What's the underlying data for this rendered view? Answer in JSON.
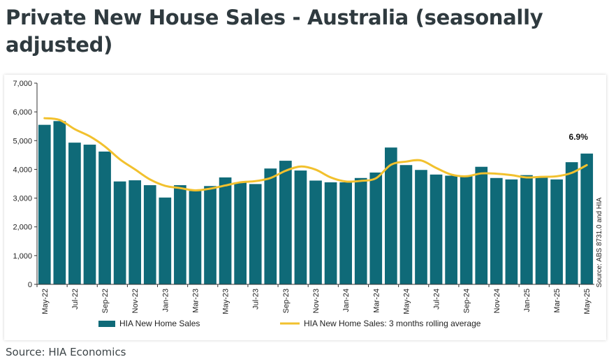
{
  "page_title": "Private New House Sales - Australia (seasonally adjusted)",
  "footer_source": "Source: HIA Economics",
  "chart_data": {
    "type": "bar",
    "categories": [
      "May-22",
      "Jun-22",
      "Jul-22",
      "Aug-22",
      "Sep-22",
      "Oct-22",
      "Nov-22",
      "Dec-22",
      "Jan-23",
      "Feb-23",
      "Mar-23",
      "Apr-23",
      "May-23",
      "Jun-23",
      "Jul-23",
      "Aug-23",
      "Sep-23",
      "Oct-23",
      "Nov-23",
      "Dec-23",
      "Jan-24",
      "Feb-24",
      "Mar-24",
      "Apr-24",
      "May-24",
      "Jun-24",
      "Jul-24",
      "Aug-24",
      "Sep-24",
      "Oct-24",
      "Nov-24",
      "Dec-24",
      "Jan-25",
      "Feb-25",
      "Mar-25",
      "Apr-25",
      "May-25"
    ],
    "x_tick_labels": [
      "May-22",
      "Jul-22",
      "Sep-22",
      "Nov-22",
      "Jan-23",
      "Mar-23",
      "May-23",
      "Jul-23",
      "Sep-23",
      "Nov-23",
      "Jan-24",
      "Mar-24",
      "May-24",
      "Jul-24",
      "Sep-24",
      "Nov-24",
      "Jan-25",
      "Mar-25",
      "May-25"
    ],
    "series": [
      {
        "name": "HIA New Home Sales",
        "type": "bar",
        "color": "#0f6a78",
        "values": [
          5550,
          5680,
          4930,
          4860,
          4620,
          3580,
          3620,
          3450,
          3020,
          3450,
          3250,
          3420,
          3720,
          3550,
          3490,
          4030,
          4300,
          3960,
          3610,
          3550,
          3550,
          3700,
          3890,
          4760,
          4150,
          3980,
          3820,
          3780,
          3790,
          4090,
          3700,
          3650,
          3800,
          3760,
          3650,
          4250,
          4550
        ]
      },
      {
        "name": "HIA New Home Sales: 3 months rolling average",
        "type": "line",
        "color": "#f2c12e",
        "values": [
          5780,
          5720,
          5400,
          5150,
          4800,
          4350,
          4000,
          3650,
          3430,
          3350,
          3270,
          3330,
          3440,
          3550,
          3590,
          3700,
          3950,
          4100,
          3990,
          3720,
          3580,
          3600,
          3690,
          4160,
          4270,
          4310,
          4050,
          3820,
          3760,
          3860,
          3850,
          3800,
          3720,
          3740,
          3760,
          3880,
          4150
        ]
      }
    ],
    "y_ticks": [
      "0",
      "1,000",
      "2,000",
      "3,000",
      "4,000",
      "5,000",
      "6,000",
      "7,000"
    ],
    "ylim": [
      0,
      7000
    ],
    "annotation": "6.9%",
    "side_note": "Source: ABS 8731.0 and HIA",
    "legend_position": "bottom"
  }
}
